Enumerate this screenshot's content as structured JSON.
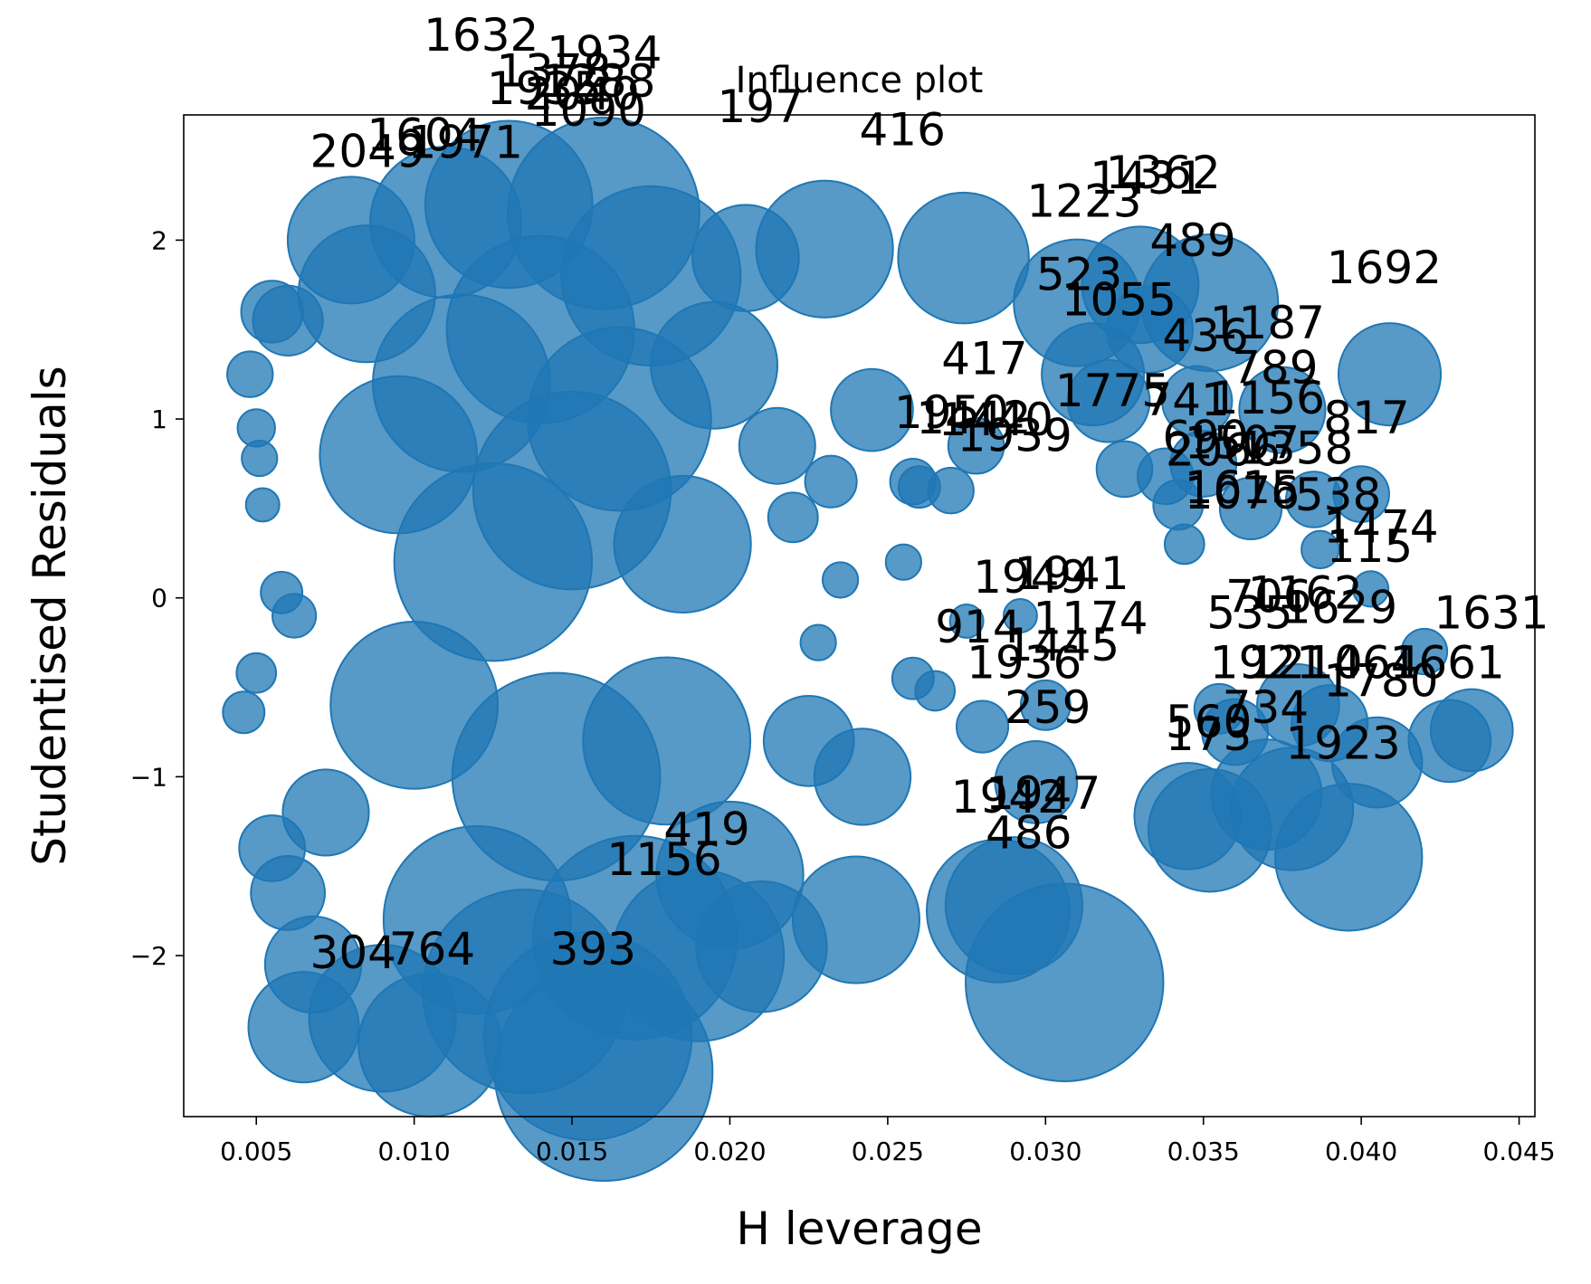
{
  "chart_data": {
    "type": "scatter",
    "title": "Influence plot",
    "xlabel": "H leverage",
    "ylabel": "Studentised Residuals",
    "xlim": [
      0.0027,
      0.0455
    ],
    "ylim": [
      -2.9,
      2.7
    ],
    "xticks": [
      0.005,
      0.01,
      0.015,
      0.02,
      0.025,
      0.03,
      0.035,
      0.04,
      0.045
    ],
    "xtick_labels": [
      "0.005",
      "0.010",
      "0.015",
      "0.020",
      "0.025",
      "0.030",
      "0.035",
      "0.040",
      "0.045"
    ],
    "yticks": [
      -2,
      -1,
      0,
      1,
      2
    ],
    "ytick_labels": [
      "−2",
      "−1",
      "0",
      "1",
      "2"
    ],
    "grid": false,
    "marker_color": "#1f77b4",
    "marker_alpha": 0.75,
    "note_size": "bubble size proportional to Cook's distance (relative 0-1)",
    "points": [
      {
        "x": 0.0048,
        "y": 1.25,
        "s": 0.1
      },
      {
        "x": 0.005,
        "y": 0.95,
        "s": 0.06
      },
      {
        "x": 0.0051,
        "y": 0.78,
        "s": 0.05
      },
      {
        "x": 0.0052,
        "y": 0.52,
        "s": 0.04
      },
      {
        "x": 0.0046,
        "y": -0.64,
        "s": 0.08
      },
      {
        "x": 0.005,
        "y": -0.42,
        "s": 0.07
      },
      {
        "x": 0.0055,
        "y": 1.6,
        "s": 0.18
      },
      {
        "x": 0.006,
        "y": 1.55,
        "s": 0.22
      },
      {
        "x": 0.0058,
        "y": 0.03,
        "s": 0.08
      },
      {
        "x": 0.0062,
        "y": -0.1,
        "s": 0.09
      },
      {
        "x": 0.0055,
        "y": -1.4,
        "s": 0.2
      },
      {
        "x": 0.006,
        "y": -1.65,
        "s": 0.24
      },
      {
        "x": 0.0065,
        "y": -2.4,
        "s": 0.42
      },
      {
        "x": 0.0068,
        "y": -2.05,
        "s": 0.35
      },
      {
        "x": 0.0072,
        "y": -1.2,
        "s": 0.3
      },
      {
        "x": 0.008,
        "y": 2.0,
        "s": 0.5
      },
      {
        "x": 0.0085,
        "y": 1.7,
        "s": 0.55
      },
      {
        "x": 0.009,
        "y": -2.35,
        "s": 0.6
      },
      {
        "x": 0.0095,
        "y": 0.8,
        "s": 0.65
      },
      {
        "x": 0.01,
        "y": -0.6,
        "s": 0.7
      },
      {
        "x": 0.0105,
        "y": -2.5,
        "s": 0.58
      },
      {
        "x": 0.011,
        "y": 2.1,
        "s": 0.62
      },
      {
        "x": 0.0115,
        "y": 1.2,
        "s": 0.75
      },
      {
        "x": 0.012,
        "y": -1.8,
        "s": 0.8
      },
      {
        "x": 0.0125,
        "y": 0.2,
        "s": 0.85
      },
      {
        "x": 0.013,
        "y": 2.2,
        "s": 0.7
      },
      {
        "x": 0.0135,
        "y": -2.2,
        "s": 0.88
      },
      {
        "x": 0.014,
        "y": 1.5,
        "s": 0.8
      },
      {
        "x": 0.0145,
        "y": -1.0,
        "s": 0.9
      },
      {
        "x": 0.015,
        "y": 0.6,
        "s": 0.85
      },
      {
        "x": 0.0155,
        "y": -2.45,
        "s": 0.9
      },
      {
        "x": 0.016,
        "y": -2.65,
        "s": 0.95
      },
      {
        "x": 0.016,
        "y": 2.15,
        "s": 0.82
      },
      {
        "x": 0.0165,
        "y": 1.0,
        "s": 0.78
      },
      {
        "x": 0.017,
        "y": -1.9,
        "s": 0.88
      },
      {
        "x": 0.0175,
        "y": 1.8,
        "s": 0.76
      },
      {
        "x": 0.018,
        "y": -0.8,
        "s": 0.7
      },
      {
        "x": 0.0185,
        "y": 0.3,
        "s": 0.55
      },
      {
        "x": 0.019,
        "y": -2.0,
        "s": 0.72
      },
      {
        "x": 0.0195,
        "y": 1.3,
        "s": 0.5
      },
      {
        "x": 0.02,
        "y": -1.55,
        "s": 0.6
      },
      {
        "x": 0.0205,
        "y": 1.9,
        "s": 0.4
      },
      {
        "x": 0.021,
        "y": -1.95,
        "s": 0.52
      },
      {
        "x": 0.0215,
        "y": 0.85,
        "s": 0.25
      },
      {
        "x": 0.022,
        "y": 0.45,
        "s": 0.12
      },
      {
        "x": 0.0225,
        "y": -0.8,
        "s": 0.32
      },
      {
        "x": 0.023,
        "y": 1.95,
        "s": 0.55
      },
      {
        "x": 0.0232,
        "y": 0.65,
        "s": 0.13
      },
      {
        "x": 0.0235,
        "y": 0.1,
        "s": 0.05
      },
      {
        "x": 0.0228,
        "y": -0.25,
        "s": 0.05
      },
      {
        "x": 0.024,
        "y": -1.8,
        "s": 0.5
      },
      {
        "x": 0.0242,
        "y": -1.0,
        "s": 0.35
      },
      {
        "x": 0.0245,
        "y": 1.05,
        "s": 0.28
      },
      {
        "x": 0.0255,
        "y": 0.2,
        "s": 0.05
      },
      {
        "x": 0.0258,
        "y": 0.65,
        "s": 0.1
      },
      {
        "x": 0.026,
        "y": 0.62,
        "s": 0.08
      },
      {
        "x": 0.0258,
        "y": -0.45,
        "s": 0.08
      },
      {
        "x": 0.0265,
        "y": -0.52,
        "s": 0.07
      },
      {
        "x": 0.027,
        "y": 0.6,
        "s": 0.1
      },
      {
        "x": 0.0274,
        "y": 1.9,
        "s": 0.52
      },
      {
        "x": 0.0275,
        "y": -0.13,
        "s": 0.04
      },
      {
        "x": 0.0278,
        "y": 0.85,
        "s": 0.15
      },
      {
        "x": 0.028,
        "y": -0.72,
        "s": 0.13
      },
      {
        "x": 0.0285,
        "y": -1.75,
        "s": 0.58
      },
      {
        "x": 0.029,
        "y": -1.72,
        "s": 0.55
      },
      {
        "x": 0.0292,
        "y": -0.1,
        "s": 0.04
      },
      {
        "x": 0.0297,
        "y": -1.03,
        "s": 0.28
      },
      {
        "x": 0.03,
        "y": -0.6,
        "s": 0.12
      },
      {
        "x": 0.0306,
        "y": -2.15,
        "s": 0.85
      },
      {
        "x": 0.031,
        "y": 1.65,
        "s": 0.5
      },
      {
        "x": 0.0315,
        "y": 1.25,
        "s": 0.38
      },
      {
        "x": 0.032,
        "y": 1.1,
        "s": 0.28
      },
      {
        "x": 0.0325,
        "y": 0.72,
        "s": 0.15
      },
      {
        "x": 0.033,
        "y": 1.75,
        "s": 0.45
      },
      {
        "x": 0.0333,
        "y": 1.5,
        "s": 0.3
      },
      {
        "x": 0.0338,
        "y": 0.68,
        "s": 0.15
      },
      {
        "x": 0.0342,
        "y": 0.52,
        "s": 0.12
      },
      {
        "x": 0.0344,
        "y": 0.3,
        "s": 0.07
      },
      {
        "x": 0.0345,
        "y": -1.22,
        "s": 0.4
      },
      {
        "x": 0.0348,
        "y": 1.1,
        "s": 0.22
      },
      {
        "x": 0.035,
        "y": 0.75,
        "s": 0.2
      },
      {
        "x": 0.0352,
        "y": 1.65,
        "s": 0.55
      },
      {
        "x": 0.0352,
        "y": -1.3,
        "s": 0.48
      },
      {
        "x": 0.0355,
        "y": -0.62,
        "s": 0.12
      },
      {
        "x": 0.036,
        "y": -0.75,
        "s": 0.2
      },
      {
        "x": 0.0365,
        "y": 0.5,
        "s": 0.18
      },
      {
        "x": 0.037,
        "y": -1.1,
        "s": 0.42
      },
      {
        "x": 0.0375,
        "y": 1.05,
        "s": 0.3
      },
      {
        "x": 0.0378,
        "y": -1.18,
        "s": 0.48
      },
      {
        "x": 0.038,
        "y": -0.6,
        "s": 0.28
      },
      {
        "x": 0.0385,
        "y": 0.55,
        "s": 0.15
      },
      {
        "x": 0.0387,
        "y": 0.27,
        "s": 0.06
      },
      {
        "x": 0.039,
        "y": -0.7,
        "s": 0.25
      },
      {
        "x": 0.0396,
        "y": -1.45,
        "s": 0.6
      },
      {
        "x": 0.04,
        "y": 0.58,
        "s": 0.15
      },
      {
        "x": 0.0403,
        "y": 0.05,
        "s": 0.05
      },
      {
        "x": 0.0405,
        "y": -0.92,
        "s": 0.32
      },
      {
        "x": 0.0409,
        "y": 1.25,
        "s": 0.38
      },
      {
        "x": 0.042,
        "y": -0.3,
        "s": 0.1
      },
      {
        "x": 0.0428,
        "y": -0.8,
        "s": 0.28
      },
      {
        "x": 0.0435,
        "y": -0.74,
        "s": 0.28
      }
    ],
    "annotations": [
      {
        "text": "1632",
        "x": 0.0103,
        "y": 3.06
      },
      {
        "text": "1934",
        "x": 0.0142,
        "y": 2.96
      },
      {
        "text": "1378",
        "x": 0.0126,
        "y": 2.86
      },
      {
        "text": "1288",
        "x": 0.014,
        "y": 2.8
      },
      {
        "text": "1935",
        "x": 0.0123,
        "y": 2.76
      },
      {
        "text": "2040",
        "x": 0.0135,
        "y": 2.73
      },
      {
        "text": "1090",
        "x": 0.0137,
        "y": 2.64
      },
      {
        "text": "197",
        "x": 0.0196,
        "y": 2.66
      },
      {
        "text": "416",
        "x": 0.0241,
        "y": 2.53
      },
      {
        "text": "1604",
        "x": 0.0085,
        "y": 2.5
      },
      {
        "text": "1971",
        "x": 0.0098,
        "y": 2.46
      },
      {
        "text": "2049",
        "x": 0.0067,
        "y": 2.41
      },
      {
        "text": "1362",
        "x": 0.0319,
        "y": 2.29
      },
      {
        "text": "1431",
        "x": 0.0314,
        "y": 2.26
      },
      {
        "text": "1223",
        "x": 0.0294,
        "y": 2.13
      },
      {
        "text": "489",
        "x": 0.0333,
        "y": 1.91
      },
      {
        "text": "1692",
        "x": 0.0389,
        "y": 1.76
      },
      {
        "text": "523",
        "x": 0.0297,
        "y": 1.72
      },
      {
        "text": "1055",
        "x": 0.0305,
        "y": 1.58
      },
      {
        "text": "1187",
        "x": 0.0352,
        "y": 1.45
      },
      {
        "text": "436",
        "x": 0.0337,
        "y": 1.38
      },
      {
        "text": "417",
        "x": 0.0267,
        "y": 1.25
      },
      {
        "text": "789",
        "x": 0.0359,
        "y": 1.2
      },
      {
        "text": "1775",
        "x": 0.0303,
        "y": 1.07
      },
      {
        "text": "741",
        "x": 0.0331,
        "y": 1.02
      },
      {
        "text": "1156",
        "x": 0.0352,
        "y": 1.03
      },
      {
        "text": "817",
        "x": 0.0388,
        "y": 0.92
      },
      {
        "text": "1950",
        "x": 0.0252,
        "y": 0.95
      },
      {
        "text": "1442",
        "x": 0.0259,
        "y": 0.92
      },
      {
        "text": "1440",
        "x": 0.0266,
        "y": 0.91
      },
      {
        "text": "1939",
        "x": 0.0272,
        "y": 0.82
      },
      {
        "text": "690",
        "x": 0.0337,
        "y": 0.81
      },
      {
        "text": "1507",
        "x": 0.0344,
        "y": 0.78
      },
      {
        "text": "2066",
        "x": 0.0338,
        "y": 0.74
      },
      {
        "text": "1358",
        "x": 0.0361,
        "y": 0.75
      },
      {
        "text": "1615",
        "x": 0.0344,
        "y": 0.53
      },
      {
        "text": "1076",
        "x": 0.0344,
        "y": 0.5
      },
      {
        "text": "538",
        "x": 0.0379,
        "y": 0.49
      },
      {
        "text": "1474",
        "x": 0.0388,
        "y": 0.31
      },
      {
        "text": "115",
        "x": 0.0389,
        "y": 0.2
      },
      {
        "text": "1941",
        "x": 0.029,
        "y": 0.05
      },
      {
        "text": "1949",
        "x": 0.0277,
        "y": 0.03
      },
      {
        "text": "706",
        "x": 0.0357,
        "y": -0.08
      },
      {
        "text": "1162",
        "x": 0.0364,
        "y": -0.06
      },
      {
        "text": "1629",
        "x": 0.0375,
        "y": -0.14
      },
      {
        "text": "1631",
        "x": 0.0423,
        "y": -0.17
      },
      {
        "text": "535",
        "x": 0.0351,
        "y": -0.17
      },
      {
        "text": "1174",
        "x": 0.0296,
        "y": -0.2
      },
      {
        "text": "914",
        "x": 0.0265,
        "y": -0.25
      },
      {
        "text": "1445",
        "x": 0.0287,
        "y": -0.35
      },
      {
        "text": "1936",
        "x": 0.0275,
        "y": -0.45
      },
      {
        "text": "1921",
        "x": 0.0352,
        "y": -0.45
      },
      {
        "text": "1210",
        "x": 0.0364,
        "y": -0.45
      },
      {
        "text": "1464",
        "x": 0.0382,
        "y": -0.45
      },
      {
        "text": "1661",
        "x": 0.0409,
        "y": -0.45
      },
      {
        "text": "1780",
        "x": 0.0388,
        "y": -0.55
      },
      {
        "text": "259",
        "x": 0.0287,
        "y": -0.7
      },
      {
        "text": "734",
        "x": 0.0356,
        "y": -0.7
      },
      {
        "text": "560",
        "x": 0.0338,
        "y": -0.78
      },
      {
        "text": "173",
        "x": 0.0338,
        "y": -0.85
      },
      {
        "text": "1923",
        "x": 0.0376,
        "y": -0.9
      },
      {
        "text": "1947",
        "x": 0.0281,
        "y": -1.18
      },
      {
        "text": "1942",
        "x": 0.027,
        "y": -1.2
      },
      {
        "text": "486",
        "x": 0.0281,
        "y": -1.4
      },
      {
        "text": "419",
        "x": 0.0179,
        "y": -1.38
      },
      {
        "text": "1156",
        "x": 0.0161,
        "y": -1.55
      },
      {
        "text": "393",
        "x": 0.0143,
        "y": -2.05
      },
      {
        "text": "764",
        "x": 0.0092,
        "y": -2.05
      },
      {
        "text": "304",
        "x": 0.0067,
        "y": -2.07
      }
    ]
  }
}
